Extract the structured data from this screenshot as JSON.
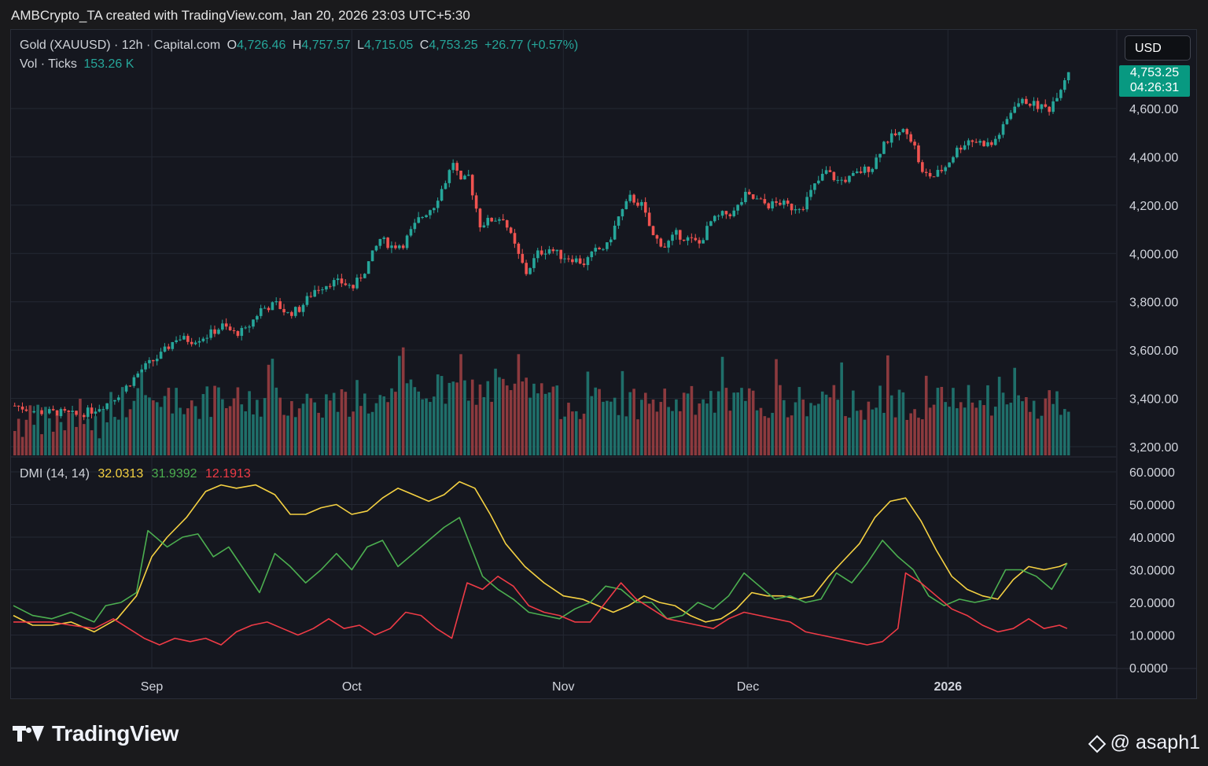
{
  "header": {
    "title": "AMBCrypto_TA created with TradingView.com, Jan 20, 2026 23:03 UTC+5:30"
  },
  "legend": {
    "symbol": "Gold (XAUUSD) · 12h · Capital.com",
    "open_key": "O",
    "open": "4,726.46",
    "high_key": "H",
    "high": "4,757.57",
    "low_key": "L",
    "low": "4,715.05",
    "close_key": "C",
    "close": "4,753.25",
    "change": "+26.77 (+0.57%)",
    "vol_label": "Vol · Ticks",
    "vol_value": "153.26 K"
  },
  "dmi_legend": {
    "label": "DMI (14, 14)",
    "adx": "32.0313",
    "plus_di": "31.9392",
    "minus_di": "12.1913"
  },
  "currency": "USD",
  "last_price": {
    "price": "4,753.25",
    "countdown": "04:26:31"
  },
  "colors": {
    "up": "#26a69a",
    "down": "#ef5350",
    "adx": "#f5d142",
    "plus_di": "#4caf50",
    "minus_di": "#ef3b46",
    "price_tag": "#089981"
  },
  "footer": {
    "brand": "TradingView",
    "user": "@ asaph1"
  },
  "chart_data": [
    {
      "type": "candlestick",
      "title": "Gold (XAUUSD) · 12h · Capital.com",
      "ylim": [
        3150,
        4800
      ],
      "y_ticks": [
        "4,600.00",
        "4,400.00",
        "4,200.00",
        "4,000.00",
        "3,800.00",
        "3,600.00",
        "3,400.00",
        "3,200.00"
      ],
      "x_ticks": [
        {
          "label": "Sep",
          "bold": false
        },
        {
          "label": "Oct",
          "bold": false
        },
        {
          "label": "Nov",
          "bold": false
        },
        {
          "label": "Dec",
          "bold": false
        },
        {
          "label": "2026",
          "bold": true
        }
      ],
      "price_path": [
        [
          0,
          3370
        ],
        [
          6,
          3345
        ],
        [
          12,
          3340
        ],
        [
          16,
          3330
        ],
        [
          20,
          3350
        ],
        [
          24,
          3380
        ],
        [
          28,
          3430
        ],
        [
          33,
          3520
        ],
        [
          38,
          3580
        ],
        [
          42,
          3650
        ],
        [
          46,
          3640
        ],
        [
          50,
          3660
        ],
        [
          54,
          3700
        ],
        [
          57,
          3670
        ],
        [
          60,
          3680
        ],
        [
          64,
          3770
        ],
        [
          68,
          3790
        ],
        [
          71,
          3750
        ],
        [
          74,
          3770
        ],
        [
          78,
          3850
        ],
        [
          82,
          3880
        ],
        [
          85,
          3880
        ],
        [
          88,
          3860
        ],
        [
          91,
          3930
        ],
        [
          95,
          4060
        ],
        [
          98,
          4030
        ],
        [
          101,
          4040
        ],
        [
          105,
          4140
        ],
        [
          109,
          4200
        ],
        [
          112,
          4300
        ],
        [
          114,
          4380
        ],
        [
          116,
          4290
        ],
        [
          118,
          4320
        ],
        [
          121,
          4120
        ],
        [
          124,
          4140
        ],
        [
          127,
          4150
        ],
        [
          131,
          3990
        ],
        [
          133,
          3920
        ],
        [
          136,
          4000
        ],
        [
          139,
          4020
        ],
        [
          142,
          3990
        ],
        [
          145,
          3980
        ],
        [
          148,
          3960
        ],
        [
          151,
          4010
        ],
        [
          154,
          4030
        ],
        [
          157,
          4150
        ],
        [
          160,
          4230
        ],
        [
          163,
          4200
        ],
        [
          166,
          4070
        ],
        [
          169,
          4030
        ],
        [
          172,
          4080
        ],
        [
          175,
          4060
        ],
        [
          178,
          4040
        ],
        [
          181,
          4130
        ],
        [
          184,
          4160
        ],
        [
          187,
          4170
        ],
        [
          190,
          4240
        ],
        [
          193,
          4220
        ],
        [
          196,
          4200
        ],
        [
          199,
          4210
        ],
        [
          202,
          4190
        ],
        [
          205,
          4200
        ],
        [
          208,
          4280
        ],
        [
          211,
          4340
        ],
        [
          214,
          4300
        ],
        [
          217,
          4310
        ],
        [
          220,
          4340
        ],
        [
          223,
          4360
        ],
        [
          226,
          4460
        ],
        [
          229,
          4490
        ],
        [
          232,
          4510
        ],
        [
          234,
          4440
        ],
        [
          236,
          4330
        ],
        [
          239,
          4320
        ],
        [
          242,
          4360
        ],
        [
          245,
          4430
        ],
        [
          248,
          4470
        ],
        [
          251,
          4460
        ],
        [
          254,
          4450
        ],
        [
          257,
          4520
        ],
        [
          260,
          4620
        ],
        [
          263,
          4630
        ],
        [
          266,
          4610
        ],
        [
          269,
          4600
        ],
        [
          272,
          4690
        ],
        [
          274,
          4760
        ]
      ],
      "volume_note": "Vol · Ticks 153.26 K"
    },
    {
      "type": "line",
      "title": "DMI (14, 14)",
      "ylim": [
        0,
        60
      ],
      "y_ticks": [
        "60.0000",
        "50.0000",
        "40.0000",
        "30.0000",
        "20.0000",
        "10.0000",
        "0.0000"
      ],
      "series": [
        {
          "name": "ADX",
          "color": "#f5d142",
          "values": [
            [
              0,
              16
            ],
            [
              5,
              13
            ],
            [
              10,
              13
            ],
            [
              15,
              14
            ],
            [
              21,
              11
            ],
            [
              27,
              15
            ],
            [
              32,
              22
            ],
            [
              36,
              34
            ],
            [
              40,
              40
            ],
            [
              45,
              46
            ],
            [
              50,
              54
            ],
            [
              54,
              56
            ],
            [
              58,
              55
            ],
            [
              63,
              56
            ],
            [
              68,
              53
            ],
            [
              72,
              47
            ],
            [
              76,
              47
            ],
            [
              80,
              49
            ],
            [
              84,
              50
            ],
            [
              88,
              47
            ],
            [
              92,
              48
            ],
            [
              96,
              52
            ],
            [
              100,
              55
            ],
            [
              104,
              53
            ],
            [
              108,
              51
            ],
            [
              112,
              53
            ],
            [
              116,
              57
            ],
            [
              120,
              55
            ],
            [
              124,
              47
            ],
            [
              128,
              38
            ],
            [
              133,
              31
            ],
            [
              138,
              26
            ],
            [
              143,
              22
            ],
            [
              148,
              21
            ],
            [
              152,
              19
            ],
            [
              156,
              17
            ],
            [
              160,
              19
            ],
            [
              164,
              22
            ],
            [
              168,
              20
            ],
            [
              172,
              19
            ],
            [
              176,
              16
            ],
            [
              180,
              14
            ],
            [
              184,
              15
            ],
            [
              188,
              18
            ],
            [
              192,
              23
            ],
            [
              196,
              22
            ],
            [
              200,
              22
            ],
            [
              204,
              21
            ],
            [
              208,
              22
            ],
            [
              212,
              28
            ],
            [
              216,
              33
            ],
            [
              220,
              38
            ],
            [
              224,
              46
            ],
            [
              228,
              51
            ],
            [
              232,
              52
            ],
            [
              236,
              45
            ],
            [
              240,
              36
            ],
            [
              244,
              28
            ],
            [
              248,
              24
            ],
            [
              252,
              22
            ],
            [
              256,
              21
            ],
            [
              260,
              27
            ],
            [
              264,
              31
            ],
            [
              268,
              30
            ],
            [
              272,
              31
            ],
            [
              274,
              32
            ]
          ]
        },
        {
          "name": "+DI",
          "color": "#4caf50",
          "values": [
            [
              0,
              19
            ],
            [
              5,
              16
            ],
            [
              10,
              15
            ],
            [
              15,
              17
            ],
            [
              21,
              14
            ],
            [
              24,
              19
            ],
            [
              28,
              20
            ],
            [
              32,
              23
            ],
            [
              35,
              42
            ],
            [
              40,
              37
            ],
            [
              44,
              40
            ],
            [
              48,
              41
            ],
            [
              52,
              34
            ],
            [
              56,
              37
            ],
            [
              60,
              30
            ],
            [
              64,
              23
            ],
            [
              68,
              35
            ],
            [
              72,
              31
            ],
            [
              76,
              26
            ],
            [
              80,
              30
            ],
            [
              84,
              35
            ],
            [
              88,
              30
            ],
            [
              92,
              37
            ],
            [
              96,
              39
            ],
            [
              100,
              31
            ],
            [
              104,
              35
            ],
            [
              108,
              39
            ],
            [
              112,
              43
            ],
            [
              116,
              46
            ],
            [
              118,
              40
            ],
            [
              122,
              28
            ],
            [
              126,
              24
            ],
            [
              130,
              21
            ],
            [
              134,
              17
            ],
            [
              138,
              16
            ],
            [
              142,
              15
            ],
            [
              146,
              18
            ],
            [
              150,
              20
            ],
            [
              154,
              25
            ],
            [
              158,
              24
            ],
            [
              162,
              20
            ],
            [
              166,
              20
            ],
            [
              170,
              15
            ],
            [
              174,
              16
            ],
            [
              178,
              20
            ],
            [
              182,
              18
            ],
            [
              186,
              22
            ],
            [
              190,
              29
            ],
            [
              194,
              25
            ],
            [
              198,
              21
            ],
            [
              202,
              22
            ],
            [
              206,
              20
            ],
            [
              210,
              21
            ],
            [
              214,
              29
            ],
            [
              218,
              26
            ],
            [
              222,
              32
            ],
            [
              226,
              39
            ],
            [
              230,
              34
            ],
            [
              234,
              30
            ],
            [
              238,
              22
            ],
            [
              242,
              19
            ],
            [
              246,
              21
            ],
            [
              250,
              20
            ],
            [
              254,
              21
            ],
            [
              258,
              30
            ],
            [
              262,
              30
            ],
            [
              266,
              28
            ],
            [
              270,
              24
            ],
            [
              274,
              32
            ]
          ]
        },
        {
          "name": "-DI",
          "color": "#ef3b46",
          "values": [
            [
              0,
              14
            ],
            [
              5,
              14
            ],
            [
              10,
              14
            ],
            [
              15,
              13
            ],
            [
              21,
              12
            ],
            [
              26,
              15
            ],
            [
              30,
              12
            ],
            [
              34,
              9
            ],
            [
              38,
              7
            ],
            [
              42,
              9
            ],
            [
              46,
              8
            ],
            [
              50,
              9
            ],
            [
              54,
              7
            ],
            [
              58,
              11
            ],
            [
              62,
              13
            ],
            [
              66,
              14
            ],
            [
              70,
              12
            ],
            [
              74,
              10
            ],
            [
              78,
              12
            ],
            [
              82,
              15
            ],
            [
              86,
              12
            ],
            [
              90,
              13
            ],
            [
              94,
              10
            ],
            [
              98,
              12
            ],
            [
              102,
              17
            ],
            [
              106,
              16
            ],
            [
              110,
              12
            ],
            [
              114,
              9
            ],
            [
              118,
              26
            ],
            [
              122,
              24
            ],
            [
              126,
              28
            ],
            [
              130,
              25
            ],
            [
              134,
              19
            ],
            [
              138,
              17
            ],
            [
              142,
              16
            ],
            [
              146,
              14
            ],
            [
              150,
              14
            ],
            [
              154,
              20
            ],
            [
              158,
              26
            ],
            [
              162,
              21
            ],
            [
              166,
              18
            ],
            [
              170,
              15
            ],
            [
              174,
              14
            ],
            [
              178,
              13
            ],
            [
              182,
              12
            ],
            [
              186,
              15
            ],
            [
              190,
              17
            ],
            [
              194,
              16
            ],
            [
              198,
              15
            ],
            [
              202,
              14
            ],
            [
              206,
              11
            ],
            [
              210,
              10
            ],
            [
              214,
              9
            ],
            [
              218,
              8
            ],
            [
              222,
              7
            ],
            [
              226,
              8
            ],
            [
              230,
              12
            ],
            [
              232,
              29
            ],
            [
              236,
              26
            ],
            [
              240,
              22
            ],
            [
              244,
              18
            ],
            [
              248,
              16
            ],
            [
              252,
              13
            ],
            [
              256,
              11
            ],
            [
              260,
              12
            ],
            [
              264,
              15
            ],
            [
              268,
              12
            ],
            [
              272,
              13
            ],
            [
              274,
              12
            ]
          ]
        }
      ]
    }
  ]
}
